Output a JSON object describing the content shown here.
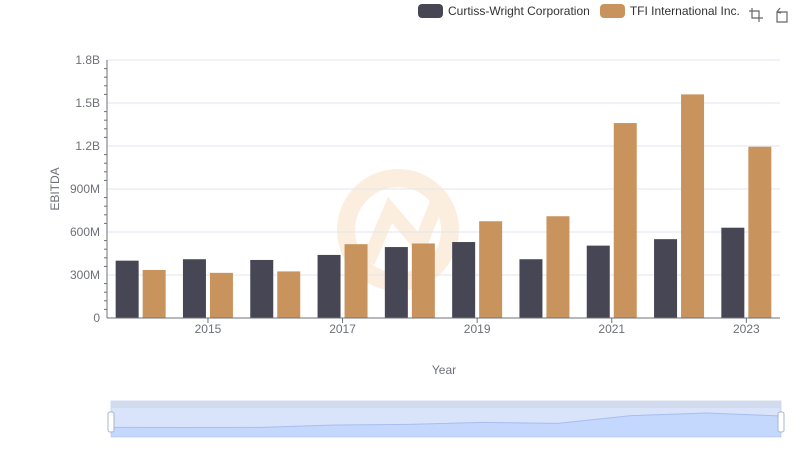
{
  "legend": [
    {
      "name": "Curtiss-Wright Corporation",
      "color": "#464655"
    },
    {
      "name": "TFI International Inc.",
      "color": "#c9935e"
    }
  ],
  "toolbox": {
    "icons": [
      "zoom-icon",
      "restore-icon"
    ]
  },
  "chart_data": {
    "type": "bar",
    "xlabel": "Year",
    "ylabel": "EBITDA",
    "x_tick_labels": [
      "2015",
      "2017",
      "2019",
      "2021",
      "2023"
    ],
    "y_tick_labels": [
      "0",
      "300M",
      "600M",
      "900M",
      "1.2B",
      "1.5B",
      "1.8B"
    ],
    "ylim": [
      0,
      1800000000
    ],
    "grid": true,
    "legend_position": "top-right",
    "categories": [
      "2014",
      "2015",
      "2016",
      "2017",
      "2018",
      "2019",
      "2020",
      "2021",
      "2022",
      "2023"
    ],
    "series": [
      {
        "name": "Curtiss-Wright Corporation",
        "color": "#464655",
        "values": [
          400000000,
          410000000,
          405000000,
          440000000,
          495000000,
          530000000,
          410000000,
          505000000,
          550000000,
          630000000
        ]
      },
      {
        "name": "TFI International Inc.",
        "color": "#c9935e",
        "values": [
          335000000,
          315000000,
          325000000,
          515000000,
          520000000,
          675000000,
          710000000,
          1360000000,
          1560000000,
          1195000000
        ]
      }
    ]
  }
}
